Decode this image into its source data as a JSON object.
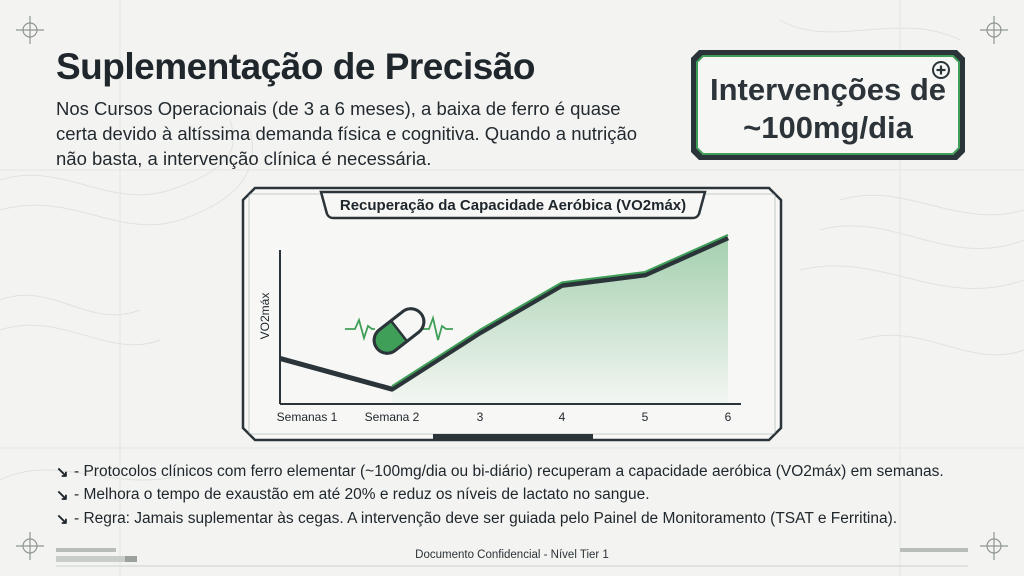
{
  "slide": {
    "title": "Suplementação de Precisão",
    "intro": "Nos Cursos Operacionais (de 3 a 6 meses), a baixa de ferro é quase certa devido à altíssima demanda física e cognitiva. Quando a nutrição não basta, a intervenção clínica é necessária.",
    "callout": {
      "line1": "Intervenções de",
      "line2": "~100mg/dia",
      "icon": "plus-circle-icon"
    },
    "bullets": [
      {
        "icon": "arrow-down-right-icon",
        "text": "- Protocolos clínicos com ferro elementar (~100mg/dia ou bi-diário) recuperam a capacidade aeróbica (VO2máx) em semanas."
      },
      {
        "icon": "arrow-down-right-icon",
        "text": "- Melhora o tempo de exaustão em até 20% e reduz os níveis de lactato no sangue."
      },
      {
        "icon": "arrow-down-right-icon",
        "text": "- Regra: Jamais suplementar às cegas. A intervenção deve ser guiada pelo Painel de Monitoramento (TSAT e Ferritina)."
      }
    ],
    "footer": "Documento Confidencial - Nível Tier 1"
  },
  "colors": {
    "background": "#f3f4f2",
    "dark": "#2b3439",
    "accent_green": "#3f9e57",
    "light_green": "#cfe8d5"
  },
  "chart_data": {
    "type": "line",
    "title": "Recuperação da Capacidade Aeróbica (VO2máx)",
    "ylabel": "VO2máx",
    "xlabel": "",
    "categories": [
      "Semanas 1",
      "Semana 2",
      "3",
      "4",
      "5",
      "6"
    ],
    "series": [
      {
        "values": [
          28,
          10,
          48,
          80,
          87,
          112
        ]
      }
    ],
    "ylim": [
      0,
      120
    ],
    "grid": false,
    "annotations": [
      {
        "icon": "pill-capsule-icon",
        "near": "Semana 2"
      },
      {
        "icon": "heartbeat-pulse-icon",
        "near": "Semana 2"
      }
    ]
  }
}
